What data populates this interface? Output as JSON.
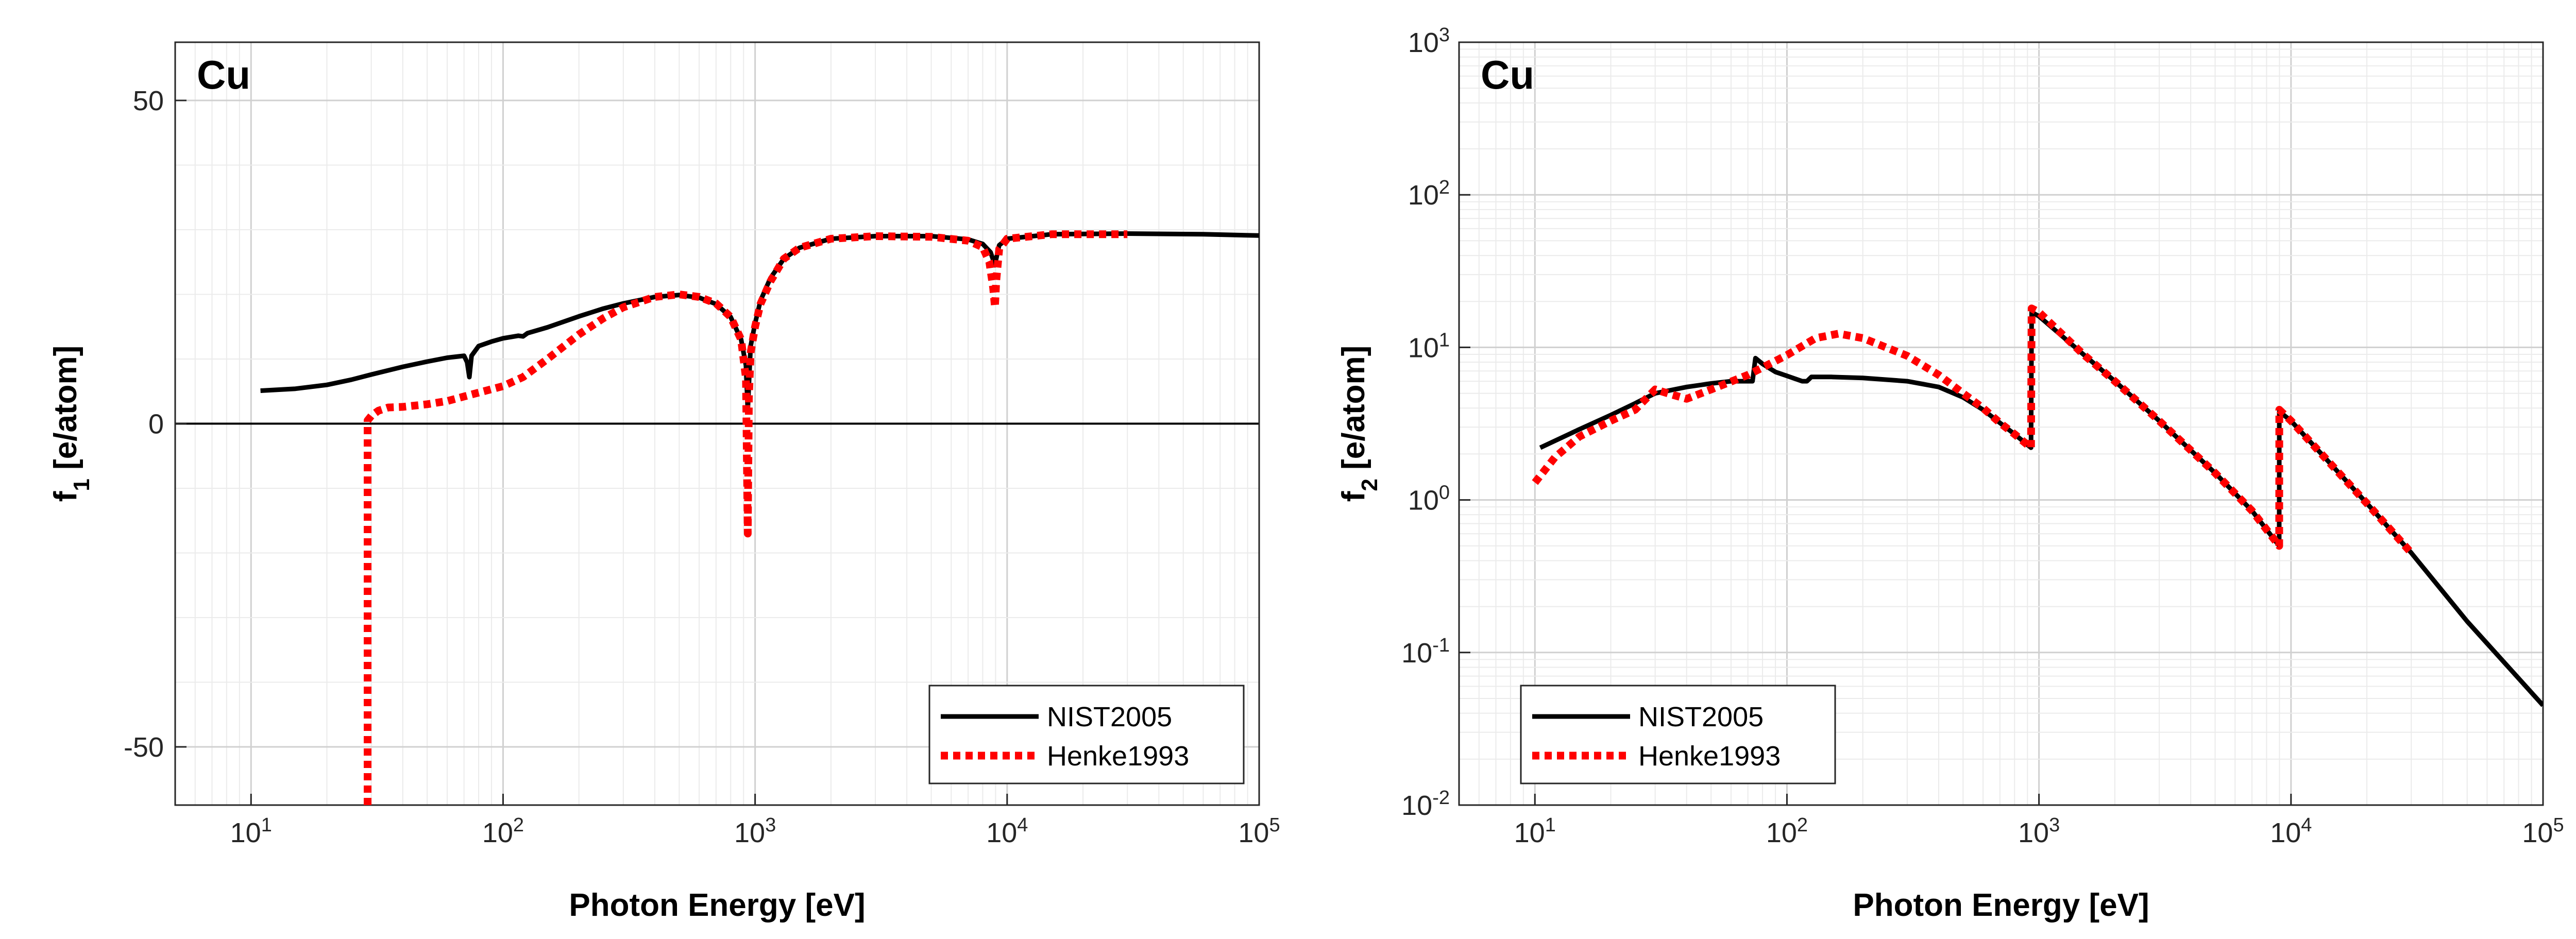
{
  "chart_data": [
    {
      "type": "line",
      "title": "Cu",
      "xlabel": "Photon Energy [eV]",
      "ylabel": "f",
      "ylabel_sub": "1",
      "ylabel_unit": " [e/atom]",
      "x_scale": "log",
      "y_scale": "linear",
      "xlim": [
        5,
        100000
      ],
      "ylim": [
        -59,
        59
      ],
      "grid": true,
      "zero_line": true,
      "x_ticks": [
        10,
        100,
        1000,
        10000,
        100000
      ],
      "x_tick_labels": [
        {
          "base": "10",
          "exp": "1"
        },
        {
          "base": "10",
          "exp": "2"
        },
        {
          "base": "10",
          "exp": "3"
        },
        {
          "base": "10",
          "exp": "4"
        },
        {
          "base": "10",
          "exp": "5"
        }
      ],
      "y_ticks": [
        50,
        0,
        -50
      ],
      "y_tick_labels": [
        "50",
        "0",
        "-50"
      ],
      "legend": {
        "position": "bottom-right",
        "entries": [
          "NIST2005",
          "Henke1993"
        ]
      },
      "series": [
        {
          "name": "NIST2005",
          "color": "#000000",
          "style": "solid",
          "points": [
            [
              10.9,
              5.1
            ],
            [
              15,
              5.4
            ],
            [
              20,
              6.0
            ],
            [
              25,
              6.8
            ],
            [
              30,
              7.6
            ],
            [
              40,
              8.8
            ],
            [
              50,
              9.6
            ],
            [
              60,
              10.2
            ],
            [
              70,
              10.5
            ],
            [
              72,
              9.5
            ],
            [
              73.5,
              7.2
            ],
            [
              75,
              10.5
            ],
            [
              80,
              12.0
            ],
            [
              90,
              12.7
            ],
            [
              100,
              13.2
            ],
            [
              115,
              13.6
            ],
            [
              120,
              13.5
            ],
            [
              125,
              14.0
            ],
            [
              150,
              14.9
            ],
            [
              200,
              16.6
            ],
            [
              250,
              17.8
            ],
            [
              300,
              18.6
            ],
            [
              400,
              19.6
            ],
            [
              500,
              19.9
            ],
            [
              600,
              19.5
            ],
            [
              700,
              18.5
            ],
            [
              800,
              16.5
            ],
            [
              880,
              13.0
            ],
            [
              920,
              9.0
            ],
            [
              935,
              2.0
            ],
            [
              945,
              6.0
            ],
            [
              960,
              12.0
            ],
            [
              1000,
              15.5
            ],
            [
              1050,
              19.0
            ],
            [
              1150,
              22.5
            ],
            [
              1300,
              25.5
            ],
            [
              1500,
              27.2
            ],
            [
              2000,
              28.6
            ],
            [
              3000,
              29.0
            ],
            [
              5000,
              29.0
            ],
            [
              7000,
              28.5
            ],
            [
              8000,
              27.8
            ],
            [
              8600,
              26.5
            ],
            [
              8950,
              24.5
            ],
            [
              9050,
              25.5
            ],
            [
              9300,
              27.6
            ],
            [
              10000,
              28.6
            ],
            [
              15000,
              29.3
            ],
            [
              30000,
              29.4
            ],
            [
              60000,
              29.3
            ],
            [
              100000,
              29.1
            ]
          ]
        },
        {
          "name": "Henke1993",
          "color": "#ff0000",
          "style": "dotted",
          "points": [
            [
              29,
              -59
            ],
            [
              29,
              0.5
            ],
            [
              30,
              1.2
            ],
            [
              32,
              2.0
            ],
            [
              35,
              2.5
            ],
            [
              40,
              2.6
            ],
            [
              50,
              3.0
            ],
            [
              60,
              3.5
            ],
            [
              70,
              4.2
            ],
            [
              80,
              4.8
            ],
            [
              100,
              5.8
            ],
            [
              120,
              7.2
            ],
            [
              150,
              10.0
            ],
            [
              200,
              13.8
            ],
            [
              250,
              16.3
            ],
            [
              300,
              18.0
            ],
            [
              400,
              19.6
            ],
            [
              500,
              20.0
            ],
            [
              600,
              19.6
            ],
            [
              700,
              18.6
            ],
            [
              800,
              16.5
            ],
            [
              880,
              13.0
            ],
            [
              920,
              7.0
            ],
            [
              935,
              -17.0
            ],
            [
              945,
              4.0
            ],
            [
              960,
              11.0
            ],
            [
              1000,
              15.0
            ],
            [
              1050,
              18.5
            ],
            [
              1150,
              22.0
            ],
            [
              1300,
              25.5
            ],
            [
              1500,
              27.2
            ],
            [
              2000,
              28.6
            ],
            [
              3000,
              29.0
            ],
            [
              5000,
              28.9
            ],
            [
              7000,
              28.3
            ],
            [
              8000,
              27.3
            ],
            [
              8500,
              25.0
            ],
            [
              8800,
              21.0
            ],
            [
              8950,
              18.0
            ],
            [
              9050,
              22.0
            ],
            [
              9300,
              27.0
            ],
            [
              10000,
              28.6
            ],
            [
              15000,
              29.3
            ],
            [
              30000,
              29.3
            ]
          ]
        }
      ]
    },
    {
      "type": "line",
      "title": "Cu",
      "xlabel": "Photon Energy [eV]",
      "ylabel": "f",
      "ylabel_sub": "2",
      "ylabel_unit": " [e/atom]",
      "x_scale": "log",
      "y_scale": "log",
      "xlim": [
        5,
        100000
      ],
      "ylim": [
        0.01,
        1000
      ],
      "grid": true,
      "x_ticks": [
        10,
        100,
        1000,
        10000,
        100000
      ],
      "x_tick_labels": [
        {
          "base": "10",
          "exp": "1"
        },
        {
          "base": "10",
          "exp": "2"
        },
        {
          "base": "10",
          "exp": "3"
        },
        {
          "base": "10",
          "exp": "4"
        },
        {
          "base": "10",
          "exp": "5"
        }
      ],
      "y_ticks": [
        1000,
        100,
        10,
        1,
        0.1,
        0.01
      ],
      "y_tick_labels": [
        {
          "base": "10",
          "exp": "3"
        },
        {
          "base": "10",
          "exp": "2"
        },
        {
          "base": "10",
          "exp": "1"
        },
        {
          "base": "10",
          "exp": "0"
        },
        {
          "base": "10",
          "exp": "-1"
        },
        {
          "base": "10",
          "exp": "-2"
        }
      ],
      "legend": {
        "position": "bottom-left",
        "entries": [
          "NIST2005",
          "Henke1993"
        ]
      },
      "series": [
        {
          "name": "NIST2005",
          "color": "#000000",
          "style": "solid",
          "points": [
            [
              10.5,
              2.2
            ],
            [
              15,
              2.9
            ],
            [
              20,
              3.6
            ],
            [
              25,
              4.3
            ],
            [
              30,
              5.0
            ],
            [
              40,
              5.5
            ],
            [
              50,
              5.8
            ],
            [
              60,
              6.0
            ],
            [
              70,
              6.0
            ],
            [
              73,
              6.0
            ],
            [
              75,
              8.5
            ],
            [
              80,
              7.8
            ],
            [
              90,
              6.9
            ],
            [
              100,
              6.5
            ],
            [
              115,
              6.0
            ],
            [
              120,
              6.0
            ],
            [
              125,
              6.4
            ],
            [
              150,
              6.4
            ],
            [
              200,
              6.3
            ],
            [
              300,
              6.0
            ],
            [
              400,
              5.5
            ],
            [
              500,
              4.7
            ],
            [
              600,
              3.9
            ],
            [
              700,
              3.2
            ],
            [
              800,
              2.7
            ],
            [
              900,
              2.3
            ],
            [
              930,
              2.2
            ],
            [
              935,
              17.0
            ],
            [
              1000,
              16.0
            ],
            [
              1500,
              9.0
            ],
            [
              2000,
              6.0
            ],
            [
              3000,
              3.3
            ],
            [
              5000,
              1.5
            ],
            [
              7000,
              0.85
            ],
            [
              8979,
              0.5
            ],
            [
              8985,
              3.8
            ],
            [
              10000,
              3.3
            ],
            [
              20000,
              0.95
            ],
            [
              30000,
              0.45
            ],
            [
              50000,
              0.16
            ],
            [
              100000,
              0.045
            ]
          ]
        },
        {
          "name": "Henke1993",
          "color": "#ff0000",
          "style": "dotted",
          "points": [
            [
              10,
              1.3
            ],
            [
              12,
              1.9
            ],
            [
              15,
              2.6
            ],
            [
              20,
              3.3
            ],
            [
              25,
              3.9
            ],
            [
              30,
              5.3
            ],
            [
              35,
              4.9
            ],
            [
              40,
              4.6
            ],
            [
              50,
              5.3
            ],
            [
              70,
              6.6
            ],
            [
              100,
              8.9
            ],
            [
              130,
              11.5
            ],
            [
              160,
              12.3
            ],
            [
              200,
              11.5
            ],
            [
              300,
              8.8
            ],
            [
              400,
              6.6
            ],
            [
              500,
              5.0
            ],
            [
              600,
              4.0
            ],
            [
              700,
              3.2
            ],
            [
              800,
              2.7
            ],
            [
              900,
              2.3
            ],
            [
              930,
              2.2
            ],
            [
              935,
              18.0
            ],
            [
              1000,
              17.0
            ],
            [
              1500,
              9.0
            ],
            [
              2000,
              6.0
            ],
            [
              3000,
              3.3
            ],
            [
              5000,
              1.5
            ],
            [
              7000,
              0.85
            ],
            [
              8979,
              0.5
            ],
            [
              8985,
              3.9
            ],
            [
              10000,
              3.3
            ],
            [
              20000,
              0.95
            ],
            [
              30000,
              0.45
            ]
          ]
        }
      ]
    }
  ]
}
